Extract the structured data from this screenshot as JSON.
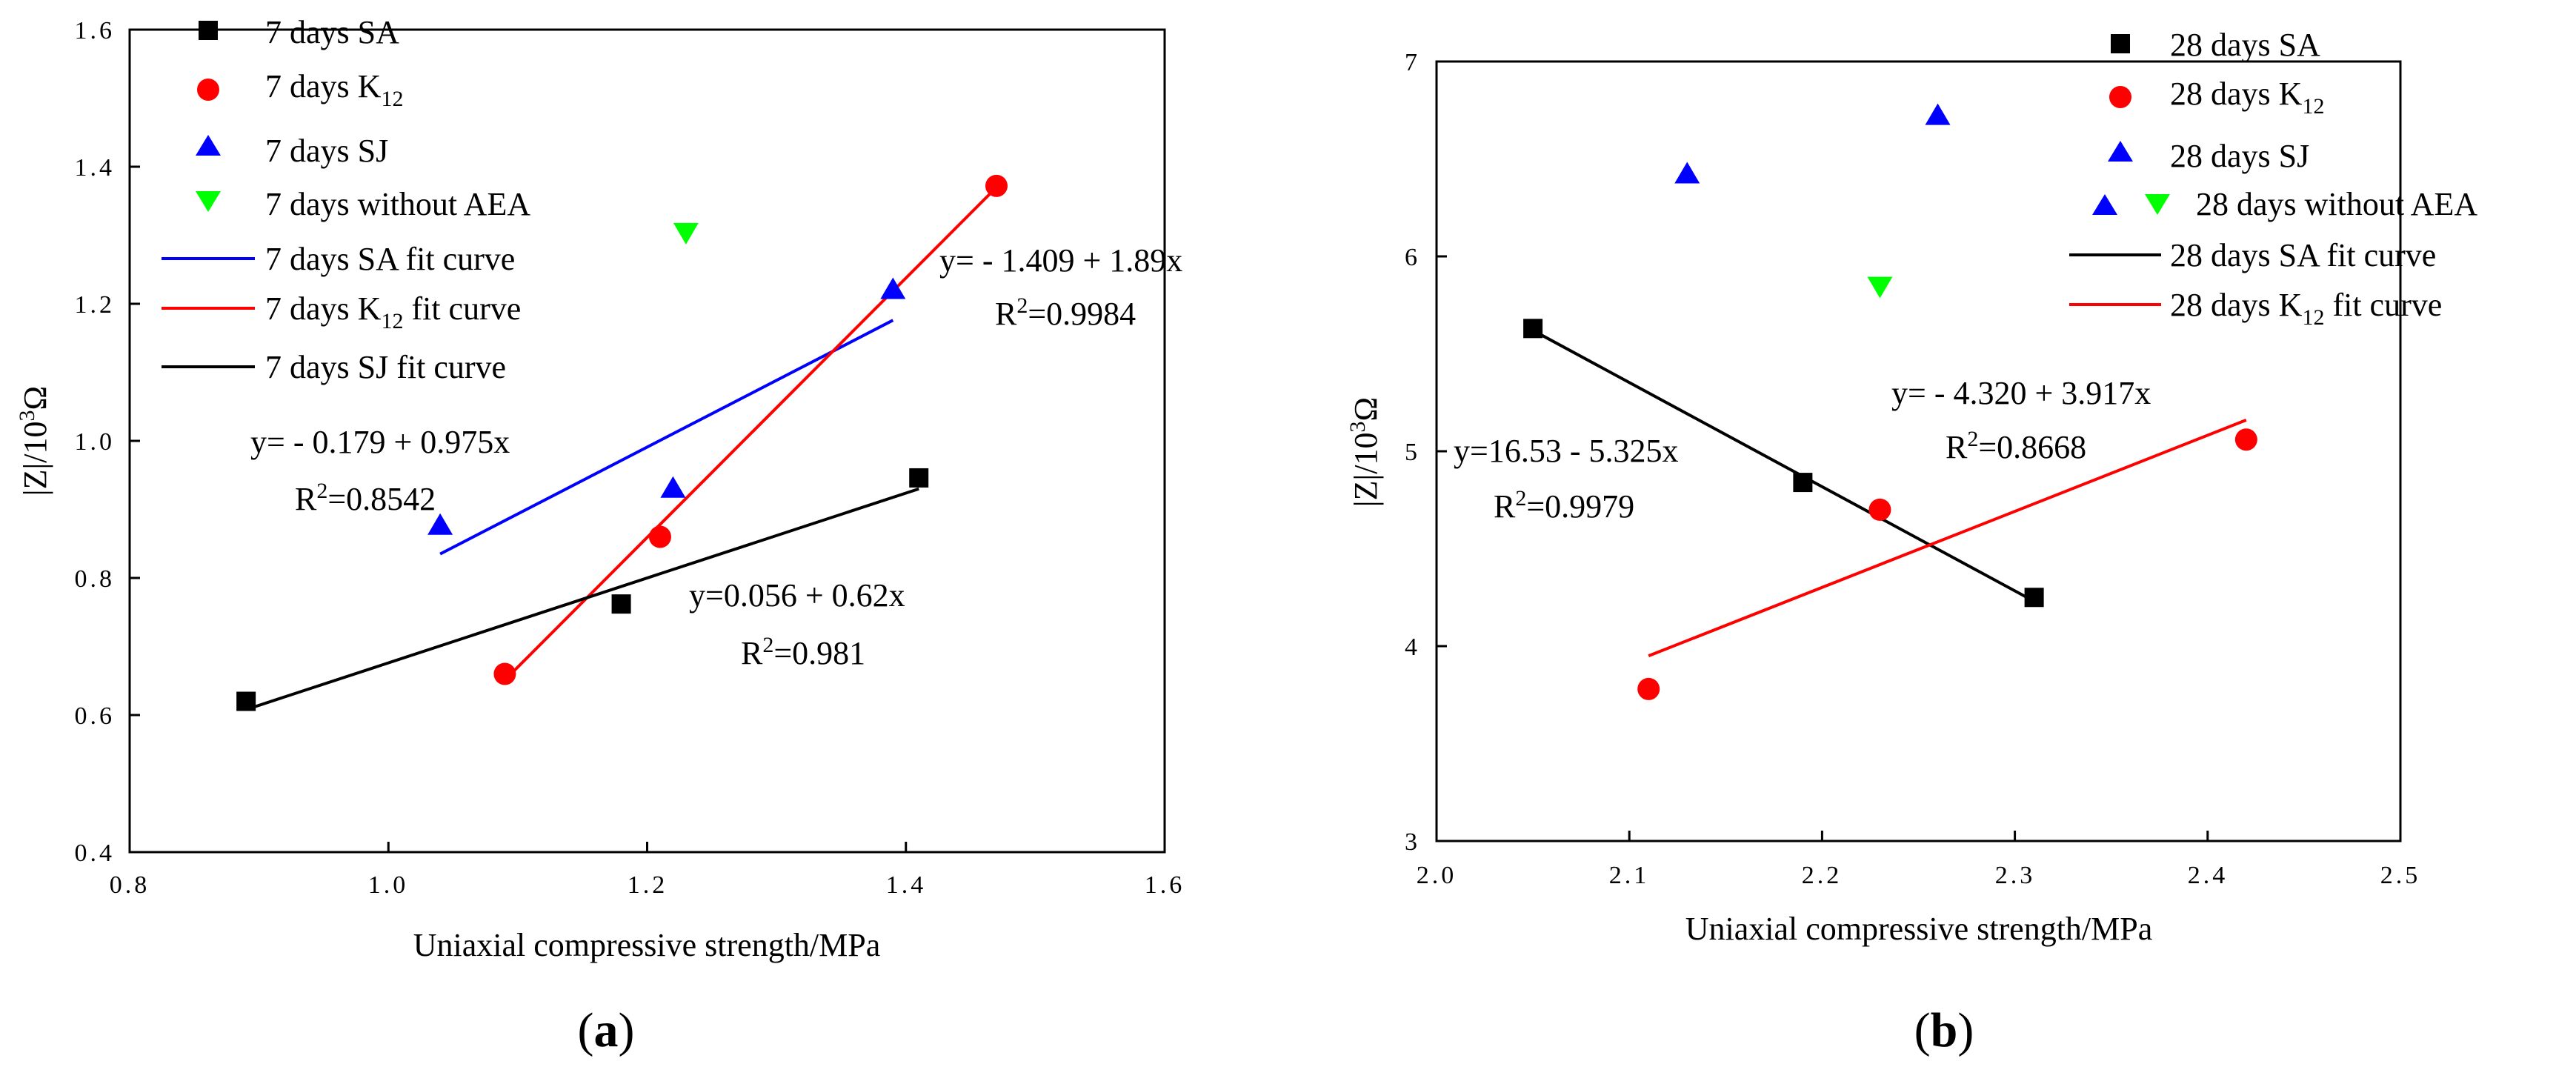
{
  "colors": {
    "SA": "#000000",
    "K12": "#ff0000",
    "SJ": "#0000ff",
    "noAEA": "#00ff00",
    "SA_fit_a": "#0000ff",
    "K12_fit": "#ff0000",
    "SJ_fit_a": "#000000",
    "SA_fit_b": "#000000"
  },
  "chart_data": [
    {
      "type": "scatter",
      "panel": "(a)",
      "panel_open": "(",
      "panel_letter": "a",
      "panel_close": ")",
      "xlabel": "Uniaxial compressive strength/MPa",
      "ylabel_base": "|Z|/10",
      "ylabel_exp": "3",
      "ylabel_unit": "Ω",
      "xlim": [
        0.8,
        1.6
      ],
      "ylim": [
        0.4,
        1.6
      ],
      "xticks": [
        "0.8",
        "1.0",
        "1.2",
        "1.4",
        "1.6"
      ],
      "yticks": [
        "0.4",
        "0.6",
        "0.8",
        "1.0",
        "1.2",
        "1.4",
        "1.6"
      ],
      "series": [
        {
          "name": "7 days SA",
          "marker": "square",
          "color": "#000000",
          "x": [
            0.89,
            1.18,
            1.41
          ],
          "y": [
            0.62,
            0.762,
            0.946
          ]
        },
        {
          "name": "7 days K12",
          "marker": "circle",
          "color": "#ff0000",
          "x": [
            1.09,
            1.21,
            1.47
          ],
          "y": [
            0.66,
            0.86,
            1.372
          ]
        },
        {
          "name": "7 days SJ",
          "marker": "triangle-up",
          "color": "#0000ff",
          "x": [
            1.04,
            1.22,
            1.39
          ],
          "y": [
            0.876,
            0.93,
            1.22
          ]
        },
        {
          "name": "7 days without AEA",
          "marker": "triangle-down",
          "color": "#00ff00",
          "x": [
            1.23
          ],
          "y": [
            1.305
          ]
        }
      ],
      "fits": [
        {
          "name": "7 days SA fit curve",
          "color": "#0000ff",
          "x": [
            1.04,
            1.39
          ],
          "y": [
            0.835,
            1.176
          ]
        },
        {
          "name": "7 days K12 fit curve",
          "color": "#ff0000",
          "x": [
            1.09,
            1.47
          ],
          "y": [
            0.651,
            1.37
          ]
        },
        {
          "name": "7 days SJ fit curve",
          "color": "#000000",
          "x": [
            0.89,
            1.41
          ],
          "y": [
            0.608,
            0.93
          ]
        }
      ],
      "legend": {
        "l1": "7 days SA",
        "l2_base": "7 days K",
        "l2_sub": "12",
        "l3": "7 days SJ",
        "l4": "7 days without AEA",
        "l5": "7 days SA fit curve",
        "l6_base": "7 days K",
        "l6_sub": "12",
        "l6_tail": " fit curve",
        "l7": "7 days SJ fit curve"
      },
      "annotations": {
        "k12_eq": "y= - 1.409 + 1.89x",
        "k12_r2_base": "R",
        "k12_r2_exp": "2",
        "k12_r2_val": "=0.9984",
        "sa_eq": "y= - 0.179 + 0.975x",
        "sa_r2_base": "R",
        "sa_r2_exp": "2",
        "sa_r2_val": "=0.8542",
        "sj_eq": "y=0.056 + 0.62x",
        "sj_r2_base": "R",
        "sj_r2_exp": "2",
        "sj_r2_val": "=0.981"
      }
    },
    {
      "type": "scatter",
      "panel": "(b)",
      "panel_open": "(",
      "panel_letter": "b",
      "panel_close": ")",
      "xlabel": "Uniaxial compressive strength/MPa",
      "ylabel_base": "|Z|/10",
      "ylabel_exp": "3",
      "ylabel_unit": "Ω",
      "xlim": [
        2.0,
        2.5
      ],
      "ylim": [
        3,
        7
      ],
      "xticks": [
        "2.0",
        "2.1",
        "2.2",
        "2.3",
        "2.4",
        "2.5"
      ],
      "yticks": [
        "3",
        "4",
        "5",
        "6",
        "7"
      ],
      "series": [
        {
          "name": "28 days SA",
          "marker": "square",
          "color": "#000000",
          "x": [
            2.05,
            2.19,
            2.31
          ],
          "y": [
            5.63,
            4.84,
            4.25
          ]
        },
        {
          "name": "28 days K12",
          "marker": "circle",
          "color": "#ff0000",
          "x": [
            2.11,
            2.23,
            2.42
          ],
          "y": [
            3.78,
            4.7,
            5.06
          ]
        },
        {
          "name": "28 days SJ",
          "marker": "triangle-up",
          "color": "#0000ff",
          "x": [
            2.13,
            2.26
          ],
          "y": [
            6.42,
            6.72
          ]
        },
        {
          "name": "28 days without AEA",
          "marker": "triangle-down",
          "color": "#00ff00",
          "x": [
            2.23
          ],
          "y": [
            5.85
          ]
        }
      ],
      "fits": [
        {
          "name": "28 days SA fit curve",
          "color": "#000000",
          "x": [
            2.05,
            2.31
          ],
          "y": [
            5.62,
            4.23
          ]
        },
        {
          "name": "28 days K12 fit curve",
          "color": "#ff0000",
          "x": [
            2.11,
            2.42
          ],
          "y": [
            3.95,
            5.16
          ]
        }
      ],
      "legend": {
        "l1": "28 days SA",
        "l2_base": "28 days K",
        "l2_sub": "12",
        "l3": "28 days SJ",
        "l4": "28 days without AEA",
        "l5": "28 days SA fit curve",
        "l6_base": "28 days K",
        "l6_sub": "12",
        "l6_tail": " fit curve"
      },
      "annotations": {
        "sa_eq": "y=16.53 - 5.325x",
        "sa_r2_base": "R",
        "sa_r2_exp": "2",
        "sa_r2_val": "=0.9979",
        "k12_eq": "y= - 4.320 + 3.917x",
        "k12_r2_base": "R",
        "k12_r2_exp": "2",
        "k12_r2_val": "=0.8668"
      }
    }
  ]
}
